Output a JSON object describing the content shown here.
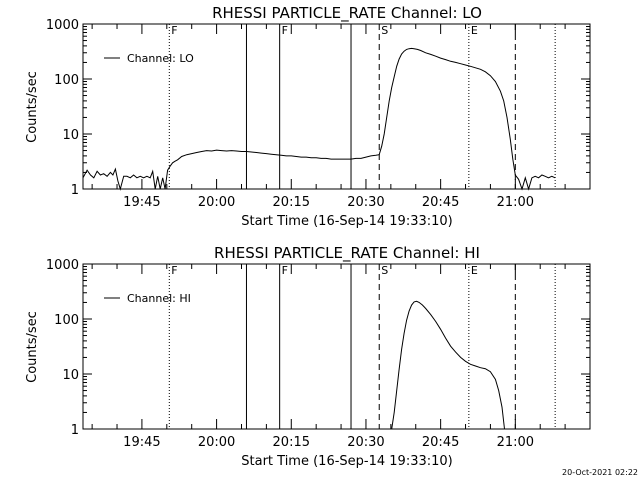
{
  "footer_timestamp": "20-Oct-2021 02:22",
  "chart_data": [
    {
      "type": "line",
      "title": "RHESSI PARTICLE_RATE Channel: LO",
      "xlabel": "Start Time (16-Sep-14 19:33:10)",
      "ylabel": "Counts/sec",
      "legend": "Channel: LO",
      "legend_position": "top-left",
      "yscale": "log",
      "xlim": [
        "19:33:10",
        "21:15:00"
      ],
      "ylim": [
        1,
        1000
      ],
      "xticks": [
        "19:45",
        "20:00",
        "20:15",
        "20:30",
        "20:45",
        "21:00"
      ],
      "yticks": [
        "1",
        "10",
        "100",
        "1000"
      ],
      "markers": [
        {
          "label": "F",
          "x": "19:50:30",
          "style": "dotted"
        },
        {
          "label": "",
          "x": "20:06:00",
          "style": "solid"
        },
        {
          "label": "F",
          "x": "20:12:40",
          "style": "solid"
        },
        {
          "label": "",
          "x": "20:27:00",
          "style": "solid"
        },
        {
          "label": "S",
          "x": "20:32:40",
          "style": "dashed"
        },
        {
          "label": "E",
          "x": "20:50:40",
          "style": "dotted"
        },
        {
          "label": "",
          "x": "21:00:00",
          "style": "dashed"
        },
        {
          "label": "",
          "x": "21:08:00",
          "style": "dotted"
        }
      ],
      "series": [
        {
          "name": "Channel: LO",
          "points": [
            [
              "19:33:10",
              1.6
            ],
            [
              "19:34:00",
              2.2
            ],
            [
              "19:34:40",
              1.8
            ],
            [
              "19:35:20",
              1.6
            ],
            [
              "19:36:00",
              2.1
            ],
            [
              "19:36:40",
              1.8
            ],
            [
              "19:37:20",
              1.9
            ],
            [
              "19:38:00",
              1.7
            ],
            [
              "19:38:40",
              2.0
            ],
            [
              "19:39:10",
              1.8
            ],
            [
              "19:39:40",
              2.3
            ],
            [
              "19:40:10",
              1.4
            ],
            [
              "19:40:40",
              1.0
            ],
            [
              "19:41:20",
              1.7
            ],
            [
              "19:42:00",
              1.7
            ],
            [
              "19:42:40",
              1.6
            ],
            [
              "19:43:20",
              1.8
            ],
            [
              "19:44:00",
              1.6
            ],
            [
              "19:44:40",
              1.7
            ],
            [
              "19:45:20",
              1.6
            ],
            [
              "19:46:00",
              1.7
            ],
            [
              "19:46:40",
              1.6
            ],
            [
              "19:47:10",
              2.1
            ],
            [
              "19:47:40",
              1.0
            ],
            [
              "19:48:10",
              1.7
            ],
            [
              "19:48:40",
              1.0
            ],
            [
              "19:49:10",
              1.6
            ],
            [
              "19:49:40",
              1.0
            ],
            [
              "19:50:10",
              2.2
            ],
            [
              "19:50:40",
              2.6
            ],
            [
              "19:51:10",
              3.0
            ],
            [
              "19:51:40",
              3.2
            ],
            [
              "19:52:10",
              3.4
            ],
            [
              "19:53:00",
              3.9
            ],
            [
              "19:54:00",
              4.2
            ],
            [
              "19:55:00",
              4.4
            ],
            [
              "19:56:00",
              4.6
            ],
            [
              "19:57:00",
              4.8
            ],
            [
              "19:58:00",
              5.0
            ],
            [
              "19:59:00",
              4.9
            ],
            [
              "20:00:00",
              5.1
            ],
            [
              "20:01:00",
              5.0
            ],
            [
              "20:02:00",
              4.9
            ],
            [
              "20:03:00",
              5.0
            ],
            [
              "20:04:00",
              4.9
            ],
            [
              "20:05:00",
              4.8
            ],
            [
              "20:06:00",
              4.8
            ],
            [
              "20:07:00",
              4.7
            ],
            [
              "20:08:00",
              4.6
            ],
            [
              "20:09:00",
              4.5
            ],
            [
              "20:10:00",
              4.4
            ],
            [
              "20:11:00",
              4.3
            ],
            [
              "20:12:00",
              4.2
            ],
            [
              "20:13:00",
              4.1
            ],
            [
              "20:14:00",
              4.0
            ],
            [
              "20:15:00",
              4.0
            ],
            [
              "20:16:00",
              3.9
            ],
            [
              "20:17:00",
              3.8
            ],
            [
              "20:18:00",
              3.8
            ],
            [
              "20:19:00",
              3.7
            ],
            [
              "20:20:00",
              3.7
            ],
            [
              "20:21:00",
              3.6
            ],
            [
              "20:22:00",
              3.6
            ],
            [
              "20:23:00",
              3.5
            ],
            [
              "20:24:00",
              3.5
            ],
            [
              "20:25:00",
              3.5
            ],
            [
              "20:26:00",
              3.5
            ],
            [
              "20:27:00",
              3.5
            ],
            [
              "20:28:00",
              3.6
            ],
            [
              "20:29:00",
              3.6
            ],
            [
              "20:30:00",
              3.8
            ],
            [
              "20:31:00",
              4.0
            ],
            [
              "20:32:00",
              4.1
            ],
            [
              "20:32:40",
              4.2
            ],
            [
              "20:33:10",
              6.0
            ],
            [
              "20:33:40",
              10
            ],
            [
              "20:34:10",
              20
            ],
            [
              "20:34:40",
              40
            ],
            [
              "20:35:10",
              70
            ],
            [
              "20:35:40",
              110
            ],
            [
              "20:36:10",
              170
            ],
            [
              "20:36:40",
              230
            ],
            [
              "20:37:10",
              285
            ],
            [
              "20:37:40",
              320
            ],
            [
              "20:38:10",
              345
            ],
            [
              "20:38:40",
              355
            ],
            [
              "20:39:10",
              360
            ],
            [
              "20:39:40",
              355
            ],
            [
              "20:40:20",
              345
            ],
            [
              "20:41:00",
              330
            ],
            [
              "20:42:00",
              300
            ],
            [
              "20:43:00",
              280
            ],
            [
              "20:44:00",
              260
            ],
            [
              "20:45:00",
              240
            ],
            [
              "20:46:00",
              225
            ],
            [
              "20:47:00",
              210
            ],
            [
              "20:48:00",
              200
            ],
            [
              "20:49:00",
              190
            ],
            [
              "20:50:00",
              180
            ],
            [
              "20:51:00",
              170
            ],
            [
              "20:52:00",
              160
            ],
            [
              "20:53:00",
              150
            ],
            [
              "20:54:00",
              135
            ],
            [
              "20:55:00",
              115
            ],
            [
              "20:56:00",
              90
            ],
            [
              "20:57:00",
              60
            ],
            [
              "20:57:40",
              40
            ],
            [
              "20:58:20",
              20
            ],
            [
              "20:59:00",
              8
            ],
            [
              "20:59:30",
              3.5
            ],
            [
              "21:00:00",
              1.8
            ],
            [
              "21:00:40",
              1.5
            ],
            [
              "21:01:20",
              1.0
            ],
            [
              "21:02:00",
              1.6
            ],
            [
              "21:02:40",
              1.0
            ],
            [
              "21:03:20",
              1.6
            ],
            [
              "21:04:00",
              1.7
            ],
            [
              "21:04:40",
              1.6
            ],
            [
              "21:05:20",
              1.8
            ],
            [
              "21:06:00",
              1.7
            ],
            [
              "21:06:40",
              1.6
            ],
            [
              "21:07:20",
              1.7
            ],
            [
              "21:08:00",
              1.6
            ]
          ]
        }
      ]
    },
    {
      "type": "line",
      "title": "RHESSI PARTICLE_RATE Channel: HI",
      "xlabel": "Start Time (16-Sep-14 19:33:10)",
      "ylabel": "Counts/sec",
      "legend": "Channel: HI",
      "legend_position": "top-left",
      "yscale": "log",
      "xlim": [
        "19:33:10",
        "21:15:00"
      ],
      "ylim": [
        1,
        1000
      ],
      "xticks": [
        "19:45",
        "20:00",
        "20:15",
        "20:30",
        "20:45",
        "21:00"
      ],
      "yticks": [
        "1",
        "10",
        "100",
        "1000"
      ],
      "markers": [
        {
          "label": "F",
          "x": "19:50:30",
          "style": "dotted"
        },
        {
          "label": "",
          "x": "20:06:00",
          "style": "solid"
        },
        {
          "label": "F",
          "x": "20:12:40",
          "style": "solid"
        },
        {
          "label": "",
          "x": "20:27:00",
          "style": "solid"
        },
        {
          "label": "S",
          "x": "20:32:40",
          "style": "dashed"
        },
        {
          "label": "E",
          "x": "20:50:40",
          "style": "dotted"
        },
        {
          "label": "",
          "x": "21:00:00",
          "style": "dashed"
        },
        {
          "label": "",
          "x": "21:08:00",
          "style": "dotted"
        }
      ],
      "series": [
        {
          "name": "Channel: HI",
          "points": [
            [
              "20:35:10",
              1.0
            ],
            [
              "20:35:40",
              2.0
            ],
            [
              "20:36:10",
              5.0
            ],
            [
              "20:36:40",
              12
            ],
            [
              "20:37:10",
              28
            ],
            [
              "20:37:40",
              55
            ],
            [
              "20:38:10",
              95
            ],
            [
              "20:38:40",
              140
            ],
            [
              "20:39:10",
              180
            ],
            [
              "20:39:40",
              205
            ],
            [
              "20:40:10",
              210
            ],
            [
              "20:40:40",
              200
            ],
            [
              "20:41:20",
              180
            ],
            [
              "20:42:00",
              155
            ],
            [
              "20:43:00",
              120
            ],
            [
              "20:44:00",
              90
            ],
            [
              "20:45:00",
              65
            ],
            [
              "20:46:00",
              45
            ],
            [
              "20:47:00",
              32
            ],
            [
              "20:48:00",
              25
            ],
            [
              "20:49:00",
              20
            ],
            [
              "20:50:00",
              17
            ],
            [
              "20:51:00",
              15
            ],
            [
              "20:52:00",
              14
            ],
            [
              "20:53:00",
              13
            ],
            [
              "20:54:00",
              12.5
            ],
            [
              "20:55:00",
              11
            ],
            [
              "20:56:00",
              8
            ],
            [
              "20:56:40",
              5
            ],
            [
              "20:57:20",
              2.5
            ],
            [
              "20:57:50",
              1.0
            ]
          ]
        }
      ]
    }
  ]
}
